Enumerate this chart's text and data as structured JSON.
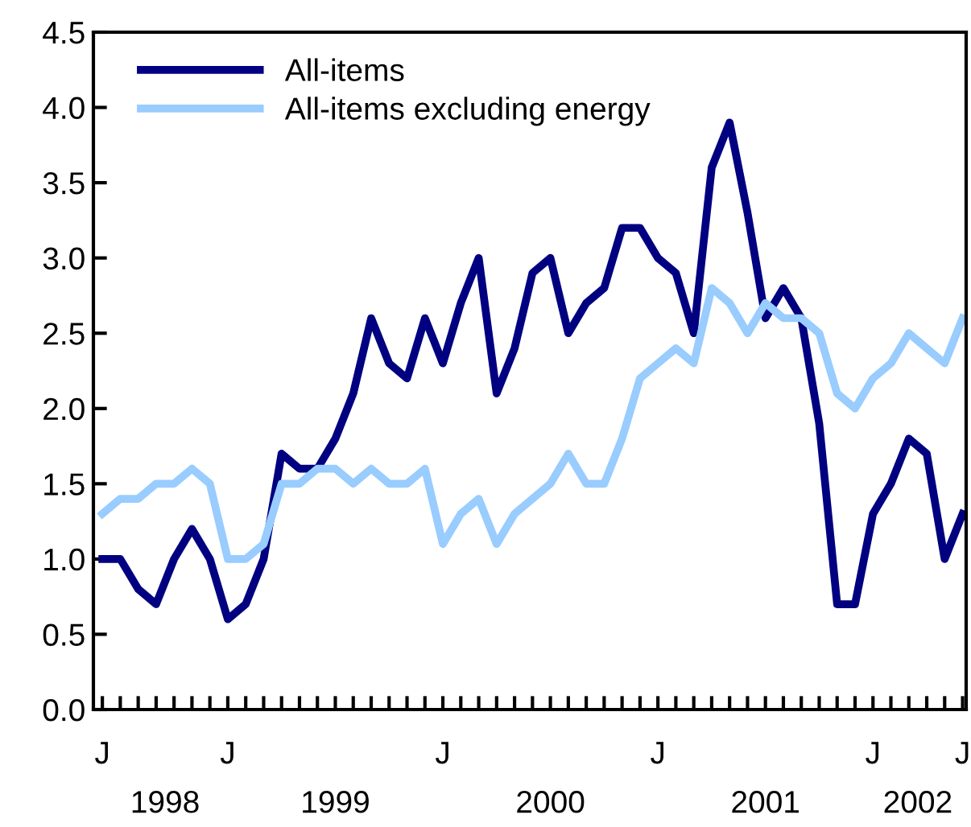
{
  "chart_data": {
    "type": "line",
    "categories": [
      "J",
      null,
      null,
      null,
      null,
      null,
      null,
      "J",
      null,
      null,
      null,
      null,
      null,
      null,
      null,
      null,
      null,
      null,
      null,
      "J",
      null,
      null,
      null,
      null,
      null,
      null,
      null,
      null,
      null,
      null,
      null,
      "J",
      null,
      null,
      null,
      null,
      null,
      null,
      null,
      null,
      null,
      null,
      null,
      "J",
      null,
      null,
      null,
      null,
      "J"
    ],
    "series": [
      {
        "name": "All-items",
        "color": "#000080",
        "values": [
          1.0,
          1.0,
          0.8,
          0.7,
          1.0,
          1.2,
          1.0,
          0.6,
          0.7,
          1.0,
          1.7,
          1.6,
          1.6,
          1.8,
          2.1,
          2.6,
          2.3,
          2.2,
          2.6,
          2.3,
          2.7,
          3.0,
          2.1,
          2.4,
          2.9,
          3.0,
          2.5,
          2.7,
          2.8,
          3.2,
          3.2,
          3.0,
          2.9,
          2.5,
          3.6,
          3.9,
          3.3,
          2.6,
          2.8,
          2.6,
          1.9,
          0.7,
          0.7,
          1.3,
          1.5,
          1.8,
          1.7,
          1.0,
          1.3
        ]
      },
      {
        "name": "All-items excluding energy",
        "color": "#99ccff",
        "values": [
          1.3,
          1.4,
          1.4,
          1.5,
          1.5,
          1.6,
          1.5,
          1.0,
          1.0,
          1.1,
          1.5,
          1.5,
          1.6,
          1.6,
          1.5,
          1.6,
          1.5,
          1.5,
          1.6,
          1.1,
          1.3,
          1.4,
          1.1,
          1.3,
          1.4,
          1.5,
          1.7,
          1.5,
          1.5,
          1.8,
          2.2,
          2.3,
          2.4,
          2.3,
          2.8,
          2.7,
          2.5,
          2.7,
          2.6,
          2.6,
          2.5,
          2.1,
          2.0,
          2.2,
          2.3,
          2.5,
          2.4,
          2.3,
          2.6
        ]
      }
    ],
    "annotations": [
      "1998",
      "1999",
      "2000",
      "2001",
      "2002"
    ],
    "ylim": [
      0,
      4.5
    ],
    "yticks": [
      {
        "value": 0,
        "label": "0.0"
      },
      {
        "value": 0.5,
        "label": "0.5"
      },
      {
        "value": 1,
        "label": "1.0"
      },
      {
        "value": 1.5,
        "label": "1.5"
      },
      {
        "value": 2,
        "label": "2.0"
      },
      {
        "value": 2.5,
        "label": "2.5"
      },
      {
        "value": 3,
        "label": "3.0"
      },
      {
        "value": 3.5,
        "label": "3.5"
      },
      {
        "value": 4,
        "label": "4.0"
      },
      {
        "value": 4.5,
        "label": "4.5"
      }
    ],
    "grid": false,
    "legend": "top left",
    "marker": "none",
    "line_style": "solid"
  }
}
